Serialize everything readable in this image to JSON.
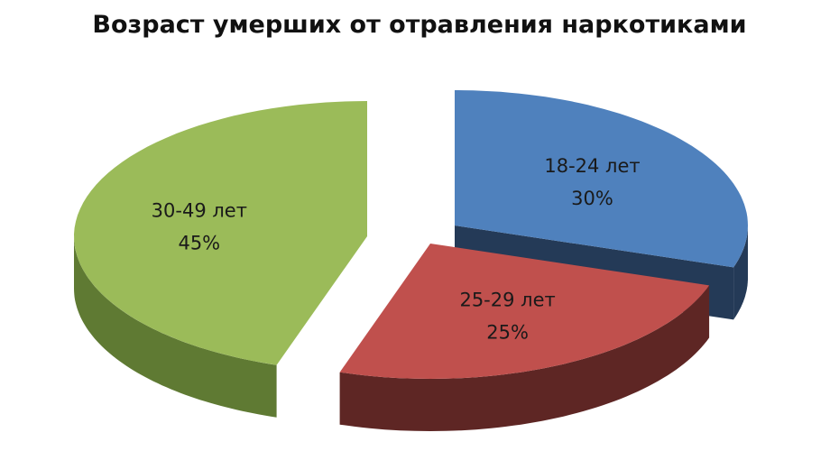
{
  "chart_data": {
    "type": "pie",
    "title": "Возраст умерших от отравления наркотиками",
    "style": "3d-exploded",
    "slices": [
      {
        "label": "18-24 лет",
        "value": 30,
        "value_label": "30%",
        "color": "#4f81bd",
        "side_color": "#243a57"
      },
      {
        "label": "25-29 лет",
        "value": 25,
        "value_label": "25%",
        "color": "#c0504d",
        "side_color": "#5e2624"
      },
      {
        "label": "30-49 лет",
        "value": 45,
        "value_label": "45%",
        "color": "#9bbb59",
        "side_color": "#5f7a33"
      }
    ]
  }
}
